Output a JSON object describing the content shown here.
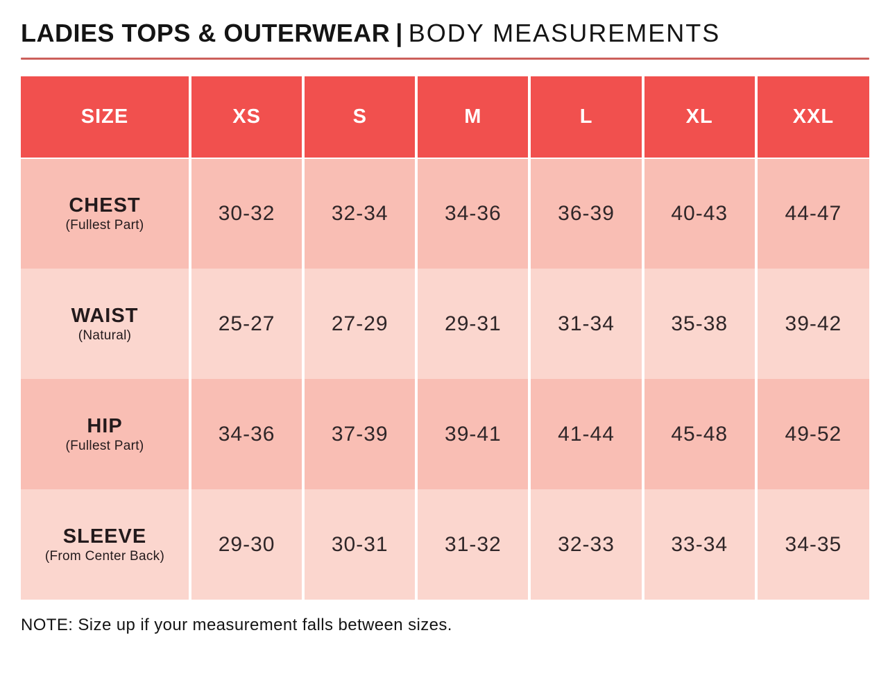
{
  "page": {
    "title_bold": "LADIES TOPS & OUTERWEAR",
    "title_separator": "|",
    "title_regular": "BODY MEASUREMENTS",
    "note": "NOTE: Size up if your measurement falls between sizes."
  },
  "colors": {
    "header_bg": "#F1504E",
    "row_dark_bg": "#F9BEB4",
    "row_light_bg": "#FBD6CE",
    "divider": "#CC5F5B",
    "header_text": "#FFFFFF",
    "body_text": "#2F2628"
  },
  "table": {
    "columns": [
      "SIZE",
      "XS",
      "S",
      "M",
      "L",
      "XL",
      "XXL"
    ],
    "rows": [
      {
        "label": "CHEST",
        "sublabel": "(Fullest Part)",
        "values": [
          "30-32",
          "32-34",
          "34-36",
          "36-39",
          "40-43",
          "44-47"
        ]
      },
      {
        "label": "WAIST",
        "sublabel": "(Natural)",
        "values": [
          "25-27",
          "27-29",
          "29-31",
          "31-34",
          "35-38",
          "39-42"
        ]
      },
      {
        "label": "HIP",
        "sublabel": "(Fullest Part)",
        "values": [
          "34-36",
          "37-39",
          "39-41",
          "41-44",
          "45-48",
          "49-52"
        ]
      },
      {
        "label": "SLEEVE",
        "sublabel": "(From Center Back)",
        "values": [
          "29-30",
          "30-31",
          "31-32",
          "32-33",
          "33-34",
          "34-35"
        ]
      }
    ]
  }
}
